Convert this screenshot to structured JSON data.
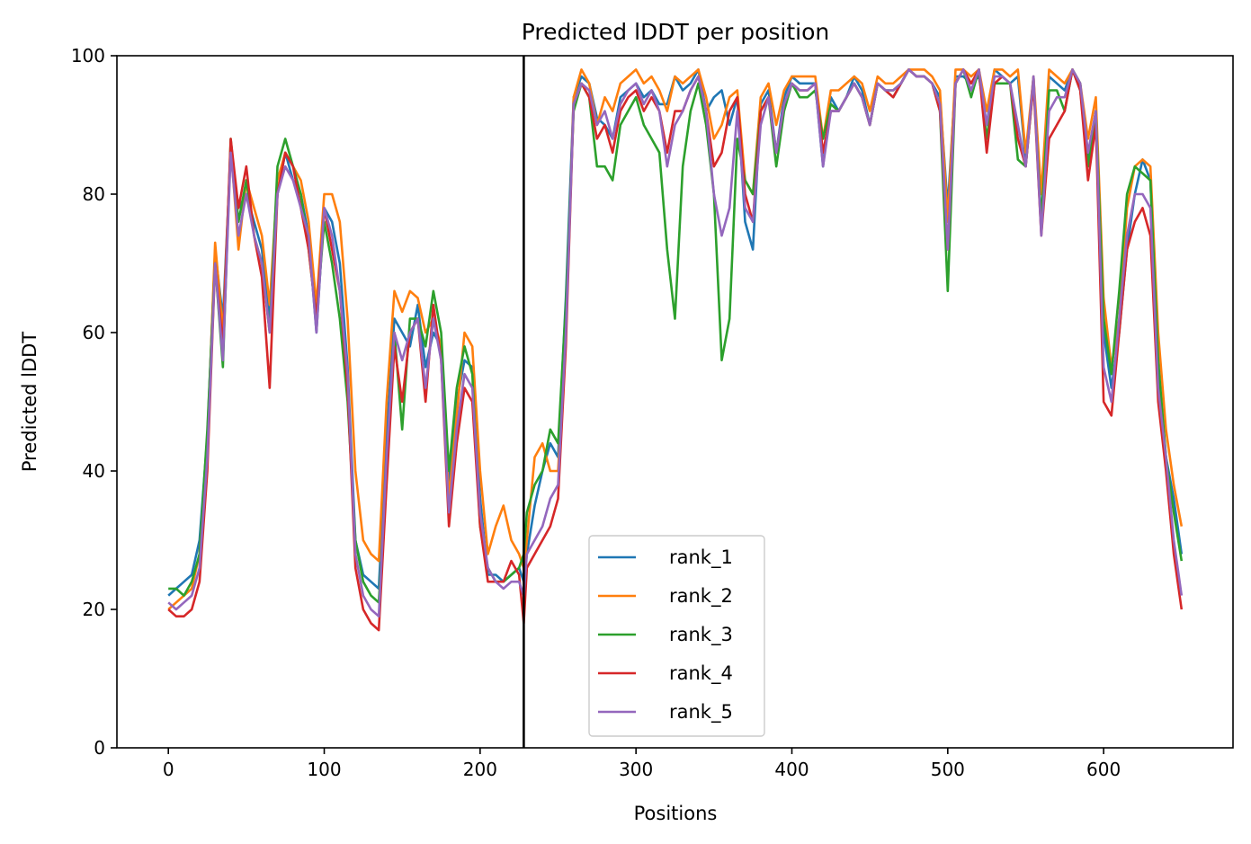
{
  "chart_data": {
    "type": "line",
    "title": "Predicted lDDT per position",
    "xlabel": "Positions",
    "ylabel": "Predicted lDDT",
    "xlim": [
      -33,
      683
    ],
    "ylim": [
      0,
      100
    ],
    "xticks": [
      0,
      100,
      200,
      300,
      400,
      500,
      600
    ],
    "yticks": [
      0,
      20,
      40,
      60,
      80,
      100
    ],
    "grid": false,
    "legend_position": "lower-center",
    "vline": {
      "x": 228,
      "color": "#000000"
    },
    "x": [
      0,
      5,
      10,
      15,
      20,
      25,
      30,
      35,
      40,
      45,
      50,
      55,
      60,
      65,
      70,
      75,
      80,
      85,
      90,
      95,
      100,
      105,
      110,
      115,
      120,
      125,
      130,
      135,
      140,
      145,
      150,
      155,
      160,
      165,
      170,
      175,
      180,
      185,
      190,
      195,
      200,
      205,
      210,
      215,
      220,
      225,
      228,
      230,
      235,
      240,
      245,
      250,
      255,
      260,
      265,
      270,
      275,
      280,
      285,
      290,
      295,
      300,
      305,
      310,
      315,
      320,
      325,
      330,
      335,
      340,
      345,
      350,
      355,
      360,
      365,
      370,
      375,
      380,
      385,
      390,
      395,
      400,
      405,
      410,
      415,
      420,
      425,
      430,
      435,
      440,
      445,
      450,
      455,
      460,
      465,
      470,
      475,
      480,
      485,
      490,
      495,
      500,
      505,
      510,
      515,
      520,
      525,
      530,
      535,
      540,
      545,
      550,
      555,
      560,
      565,
      570,
      575,
      580,
      585,
      590,
      595,
      600,
      605,
      610,
      615,
      620,
      625,
      630,
      635,
      640,
      645,
      650
    ],
    "series": [
      {
        "name": "rank_1",
        "color": "#1f77b4",
        "values": [
          22,
          23,
          24,
          25,
          30,
          45,
          72,
          62,
          86,
          78,
          80,
          76,
          72,
          62,
          80,
          86,
          82,
          80,
          74,
          60,
          78,
          76,
          70,
          55,
          30,
          25,
          24,
          23,
          45,
          62,
          60,
          58,
          64,
          55,
          60,
          58,
          38,
          50,
          56,
          55,
          36,
          25,
          25,
          24,
          25,
          26,
          24,
          28,
          35,
          40,
          44,
          42,
          65,
          94,
          97,
          96,
          91,
          90,
          88,
          94,
          95,
          96,
          94,
          95,
          93,
          93,
          97,
          95,
          96,
          98,
          92,
          94,
          95,
          90,
          94,
          76,
          72,
          93,
          95,
          86,
          94,
          97,
          96,
          96,
          96,
          84,
          94,
          92,
          94,
          97,
          95,
          90,
          96,
          95,
          94,
          96,
          98,
          97,
          97,
          96,
          94,
          78,
          97,
          97,
          96,
          97,
          90,
          98,
          97,
          96,
          97,
          85,
          97,
          76,
          97,
          96,
          95,
          98,
          95,
          85,
          92,
          60,
          52,
          60,
          72,
          80,
          85,
          82,
          55,
          42,
          36,
          28
        ]
      },
      {
        "name": "rank_2",
        "color": "#ff7f0e",
        "values": [
          20,
          21,
          22,
          23,
          28,
          44,
          73,
          60,
          87,
          72,
          82,
          78,
          74,
          64,
          82,
          86,
          84,
          82,
          76,
          64,
          80,
          80,
          76,
          62,
          40,
          30,
          28,
          27,
          50,
          66,
          63,
          66,
          65,
          60,
          62,
          58,
          36,
          48,
          60,
          58,
          40,
          28,
          32,
          35,
          30,
          28,
          26,
          30,
          42,
          44,
          40,
          40,
          60,
          94,
          98,
          96,
          90,
          94,
          92,
          96,
          97,
          98,
          96,
          97,
          95,
          92,
          97,
          96,
          97,
          98,
          94,
          88,
          90,
          94,
          95,
          82,
          80,
          94,
          96,
          90,
          95,
          97,
          97,
          97,
          97,
          88,
          95,
          95,
          96,
          97,
          96,
          92,
          97,
          96,
          96,
          97,
          98,
          98,
          98,
          97,
          95,
          76,
          98,
          98,
          97,
          98,
          92,
          98,
          98,
          97,
          98,
          86,
          97,
          80,
          98,
          97,
          96,
          98,
          96,
          88,
          94,
          65,
          55,
          62,
          78,
          84,
          85,
          84,
          60,
          46,
          38,
          32
        ]
      },
      {
        "name": "rank_3",
        "color": "#2ca02c",
        "values": [
          23,
          23,
          22,
          24,
          28,
          46,
          70,
          55,
          88,
          76,
          82,
          74,
          70,
          60,
          84,
          88,
          84,
          80,
          72,
          62,
          76,
          70,
          62,
          50,
          30,
          24,
          22,
          21,
          40,
          60,
          46,
          62,
          62,
          58,
          66,
          60,
          40,
          52,
          58,
          54,
          32,
          26,
          24,
          24,
          25,
          26,
          28,
          34,
          38,
          40,
          46,
          44,
          64,
          92,
          96,
          94,
          84,
          84,
          82,
          90,
          92,
          94,
          90,
          88,
          86,
          72,
          62,
          84,
          92,
          96,
          90,
          80,
          56,
          62,
          88,
          82,
          80,
          92,
          94,
          84,
          92,
          96,
          94,
          94,
          95,
          88,
          93,
          92,
          94,
          96,
          94,
          90,
          96,
          95,
          95,
          96,
          98,
          97,
          97,
          96,
          92,
          66,
          96,
          98,
          94,
          98,
          88,
          96,
          96,
          96,
          85,
          84,
          96,
          76,
          95,
          95,
          92,
          98,
          96,
          84,
          92,
          62,
          54,
          66,
          80,
          84,
          83,
          82,
          56,
          42,
          34,
          27
        ]
      },
      {
        "name": "rank_4",
        "color": "#d62728",
        "values": [
          20,
          19,
          19,
          20,
          24,
          40,
          70,
          58,
          88,
          78,
          84,
          74,
          68,
          52,
          80,
          86,
          84,
          78,
          72,
          62,
          78,
          72,
          66,
          52,
          26,
          20,
          18,
          17,
          38,
          58,
          50,
          60,
          62,
          50,
          64,
          56,
          32,
          44,
          52,
          50,
          32,
          24,
          24,
          24,
          27,
          25,
          18,
          26,
          28,
          30,
          32,
          36,
          58,
          93,
          96,
          94,
          88,
          90,
          86,
          92,
          94,
          95,
          92,
          94,
          92,
          86,
          92,
          92,
          95,
          97,
          92,
          84,
          86,
          92,
          94,
          80,
          76,
          92,
          94,
          86,
          93,
          96,
          95,
          95,
          96,
          86,
          92,
          92,
          94,
          96,
          94,
          90,
          96,
          95,
          94,
          96,
          98,
          97,
          97,
          96,
          92,
          72,
          96,
          98,
          96,
          98,
          86,
          96,
          97,
          96,
          88,
          84,
          96,
          74,
          88,
          90,
          92,
          98,
          95,
          82,
          90,
          50,
          48,
          60,
          72,
          76,
          78,
          74,
          50,
          40,
          28,
          20
        ]
      },
      {
        "name": "rank_5",
        "color": "#9467bd",
        "values": [
          21,
          20,
          21,
          22,
          26,
          42,
          70,
          56,
          86,
          74,
          80,
          74,
          70,
          60,
          80,
          84,
          82,
          78,
          74,
          60,
          78,
          74,
          66,
          54,
          28,
          22,
          20,
          19,
          42,
          60,
          56,
          60,
          62,
          52,
          62,
          56,
          34,
          46,
          54,
          52,
          34,
          26,
          24,
          23,
          24,
          24,
          22,
          28,
          30,
          32,
          36,
          38,
          60,
          93,
          96,
          95,
          90,
          92,
          88,
          93,
          95,
          96,
          93,
          95,
          92,
          84,
          90,
          92,
          95,
          97,
          92,
          80,
          74,
          78,
          92,
          78,
          76,
          90,
          94,
          86,
          93,
          96,
          95,
          95,
          96,
          84,
          92,
          92,
          94,
          96,
          94,
          90,
          96,
          95,
          95,
          96,
          98,
          97,
          97,
          96,
          93,
          72,
          96,
          98,
          95,
          98,
          90,
          97,
          97,
          96,
          90,
          84,
          97,
          74,
          92,
          94,
          94,
          98,
          96,
          86,
          92,
          55,
          50,
          62,
          74,
          80,
          80,
          78,
          52,
          42,
          30,
          22
        ]
      }
    ]
  }
}
